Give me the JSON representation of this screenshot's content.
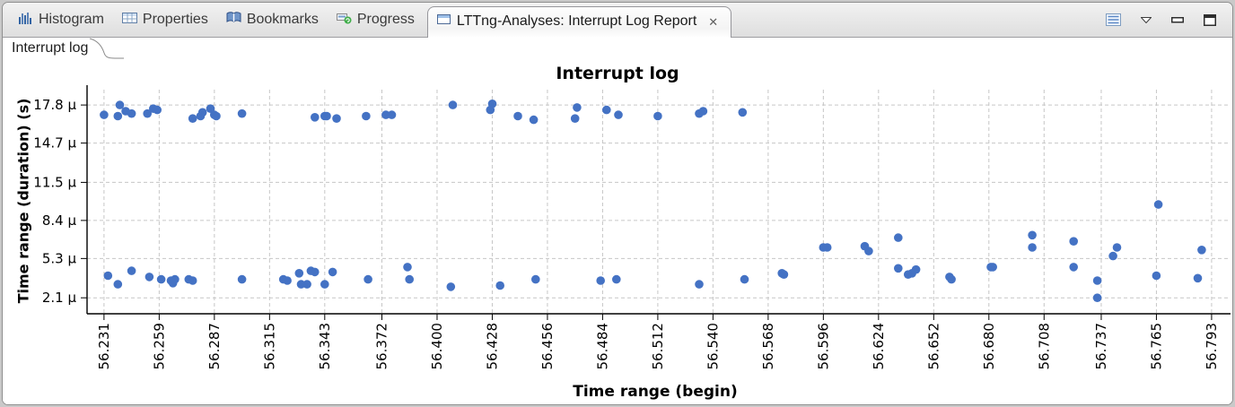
{
  "window": {
    "view_tabs": [
      {
        "label": "Histogram"
      },
      {
        "label": "Properties"
      },
      {
        "label": "Bookmarks"
      },
      {
        "label": "Progress"
      }
    ],
    "active_tab": {
      "label": "LTTng-Analyses: Interrupt Log Report",
      "close_glyph": "✕"
    },
    "subtab": {
      "label": "Interrupt log"
    }
  },
  "chart_data": {
    "type": "scatter",
    "title": "Interrupt log",
    "xlabel": "Time range (begin)",
    "ylabel": "Time range (duration) (s)",
    "x_unit": "s",
    "y_unit": "µs",
    "grid": true,
    "legend": false,
    "point_color": "#4472c4",
    "x_ticks": [
      "56.231",
      "56.259",
      "56.287",
      "56.315",
      "56.343",
      "56.372",
      "56.400",
      "56.428",
      "56.456",
      "56.484",
      "56.512",
      "56.540",
      "56.568",
      "56.596",
      "56.624",
      "56.652",
      "56.680",
      "56.708",
      "56.737",
      "56.765",
      "56.793"
    ],
    "x_tick_values": [
      56.231,
      56.259,
      56.287,
      56.315,
      56.343,
      56.372,
      56.4,
      56.428,
      56.456,
      56.484,
      56.512,
      56.54,
      56.568,
      56.596,
      56.624,
      56.652,
      56.68,
      56.708,
      56.737,
      56.765,
      56.793
    ],
    "y_ticks": [
      "2.1 µ",
      "5.3 µ",
      "8.4 µ",
      "11.5 µ",
      "14.7 µ",
      "17.8 µ"
    ],
    "y_tick_values": [
      2.1,
      5.3,
      8.4,
      11.5,
      14.7,
      17.8
    ],
    "x_range": [
      56.2224,
      56.8026
    ],
    "y_range": [
      0.8,
      19.05
    ],
    "points": [
      [
        56.231,
        17.0
      ],
      [
        56.238,
        16.9
      ],
      [
        56.239,
        17.8
      ],
      [
        56.242,
        17.3
      ],
      [
        56.245,
        17.1
      ],
      [
        56.253,
        17.1
      ],
      [
        56.256,
        17.5
      ],
      [
        56.258,
        17.4
      ],
      [
        56.276,
        16.7
      ],
      [
        56.28,
        16.9
      ],
      [
        56.281,
        17.2
      ],
      [
        56.285,
        17.5
      ],
      [
        56.287,
        17.0
      ],
      [
        56.288,
        16.9
      ],
      [
        56.301,
        17.1
      ],
      [
        56.338,
        16.8
      ],
      [
        56.343,
        16.9
      ],
      [
        56.344,
        16.9
      ],
      [
        56.349,
        16.7
      ],
      [
        56.364,
        16.9
      ],
      [
        56.374,
        17.0
      ],
      [
        56.377,
        17.0
      ],
      [
        56.408,
        17.8
      ],
      [
        56.427,
        17.4
      ],
      [
        56.428,
        17.9
      ],
      [
        56.441,
        16.9
      ],
      [
        56.449,
        16.6
      ],
      [
        56.47,
        16.7
      ],
      [
        56.471,
        17.6
      ],
      [
        56.486,
        17.4
      ],
      [
        56.492,
        17.0
      ],
      [
        56.512,
        16.9
      ],
      [
        56.533,
        17.1
      ],
      [
        56.535,
        17.3
      ],
      [
        56.555,
        17.2
      ],
      [
        56.233,
        3.9
      ],
      [
        56.238,
        3.2
      ],
      [
        56.245,
        4.3
      ],
      [
        56.254,
        3.8
      ],
      [
        56.26,
        3.6
      ],
      [
        56.265,
        3.5
      ],
      [
        56.266,
        3.3
      ],
      [
        56.267,
        3.6
      ],
      [
        56.274,
        3.6
      ],
      [
        56.276,
        3.5
      ],
      [
        56.301,
        3.6
      ],
      [
        56.322,
        3.6
      ],
      [
        56.324,
        3.5
      ],
      [
        56.33,
        4.1
      ],
      [
        56.331,
        3.2
      ],
      [
        56.334,
        3.2
      ],
      [
        56.336,
        4.3
      ],
      [
        56.338,
        4.2
      ],
      [
        56.343,
        3.2
      ],
      [
        56.347,
        4.2
      ],
      [
        56.365,
        3.6
      ],
      [
        56.385,
        4.6
      ],
      [
        56.386,
        3.6
      ],
      [
        56.407,
        3.0
      ],
      [
        56.432,
        3.1
      ],
      [
        56.45,
        3.6
      ],
      [
        56.483,
        3.5
      ],
      [
        56.491,
        3.6
      ],
      [
        56.533,
        3.2
      ],
      [
        56.556,
        3.6
      ],
      [
        56.575,
        4.1
      ],
      [
        56.576,
        4.0
      ],
      [
        56.596,
        6.2
      ],
      [
        56.598,
        6.2
      ],
      [
        56.617,
        6.3
      ],
      [
        56.619,
        5.9
      ],
      [
        56.634,
        7.0
      ],
      [
        56.634,
        4.5
      ],
      [
        56.639,
        4.0
      ],
      [
        56.641,
        4.1
      ],
      [
        56.643,
        4.4
      ],
      [
        56.66,
        3.8
      ],
      [
        56.661,
        3.6
      ],
      [
        56.681,
        4.6
      ],
      [
        56.682,
        4.6
      ],
      [
        56.702,
        6.2
      ],
      [
        56.702,
        7.2
      ],
      [
        56.723,
        4.6
      ],
      [
        56.723,
        6.7
      ],
      [
        56.735,
        3.5
      ],
      [
        56.735,
        2.1
      ],
      [
        56.743,
        5.5
      ],
      [
        56.745,
        6.2
      ],
      [
        56.765,
        3.9
      ],
      [
        56.766,
        9.7
      ],
      [
        56.786,
        3.7
      ],
      [
        56.788,
        6.0
      ]
    ]
  }
}
